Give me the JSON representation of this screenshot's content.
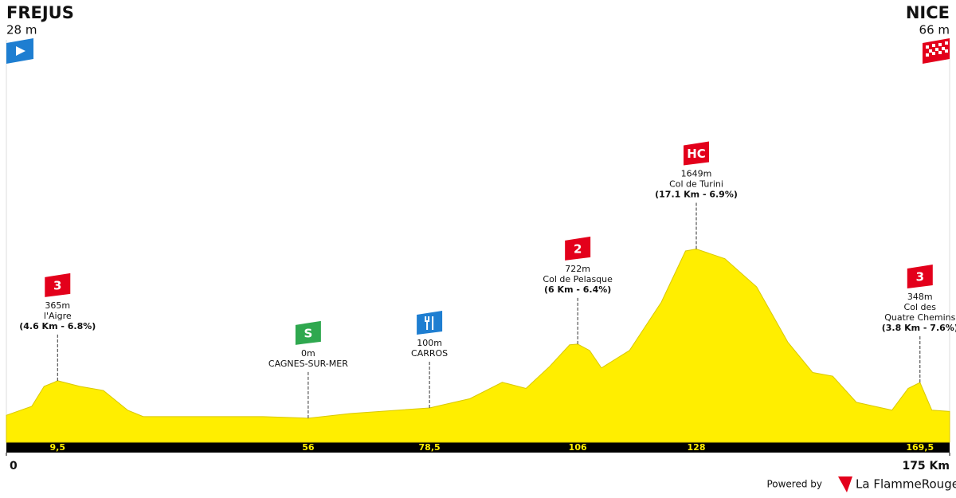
{
  "chart_data": {
    "type": "area",
    "color": "#ffee00",
    "start": {
      "name": "FREJUS",
      "elevation": {
        "value": 28,
        "label": "28 m"
      }
    },
    "finish": {
      "name": "NICE",
      "elevation": {
        "value": 66,
        "label": "66 m"
      }
    },
    "xlim": [
      0,
      175
    ],
    "ylim": [
      -250,
      2500
    ],
    "xticks": [
      0,
      {
        "value": 175,
        "label": "175 Km"
      }
    ],
    "profile": {
      "km": [
        0,
        4.7,
        7,
        8.9,
        9.5,
        13.6,
        18,
        22.5,
        25.4,
        35.8,
        47.6,
        56,
        63.8,
        78.5,
        86,
        92,
        96.4,
        100.8,
        104.5,
        106,
        108.2,
        110.4,
        115.6,
        121.5,
        126,
        128,
        133.3,
        139.2,
        145,
        149.6,
        153.3,
        157.7,
        164.3,
        167.3,
        169.5,
        171.7,
        175
      ],
      "elevation": [
        28,
        115,
        310,
        350,
        365,
        310,
        270,
        78,
        15,
        15,
        15,
        0,
        45,
        100,
        190,
        350,
        290,
        505,
        715,
        722,
        660,
        490,
        660,
        1130,
        1630,
        1649,
        1555,
        1280,
        740,
        445,
        410,
        155,
        78,
        290,
        348,
        78,
        66
      ]
    },
    "points": [
      {
        "km": {
          "value": 9.5,
          "label": "9,5"
        },
        "category": "3",
        "badge_color": "#e3001b",
        "elevation": {
          "value": 365,
          "label": "365m"
        },
        "name": [
          "l'Aigre"
        ],
        "detail": "(4.6 Km - 6.8%)"
      },
      {
        "km": 56,
        "category": "S",
        "badge_color": "#2fa84f",
        "elevation": {
          "value": 0,
          "label": "0m"
        },
        "name": [
          "CAGNES-SUR-MER"
        ]
      },
      {
        "km": {
          "value": 78.5,
          "label": "78,5"
        },
        "badge_color": "#1e7ed1",
        "elevation": {
          "value": 100,
          "label": "100m"
        },
        "name": [
          "CARROS"
        ]
      },
      {
        "km": 106,
        "category": "2",
        "badge_color": "#e3001b",
        "elevation": {
          "value": 722,
          "label": "722m"
        },
        "name": [
          "Col de Pelasque"
        ],
        "detail": "(6 Km - 6.4%)"
      },
      {
        "km": 128,
        "category": "HC",
        "badge_color": "#e3001b",
        "elevation": {
          "value": 1649,
          "label": "1649m"
        },
        "name": [
          "Col de Turini"
        ],
        "detail": "(17.1 Km - 6.9%)"
      },
      {
        "km": {
          "value": 169.5,
          "label": "169,5"
        },
        "category": "3",
        "badge_color": "#e3001b",
        "elevation": {
          "value": 348,
          "label": "348m"
        },
        "name": [
          "Col des",
          "Quatre Chemins"
        ],
        "detail": "(3.8 Km - 7.6%)"
      }
    ],
    "footer": {
      "powered": "Powered by",
      "brand": "La FlammeRouge"
    }
  }
}
